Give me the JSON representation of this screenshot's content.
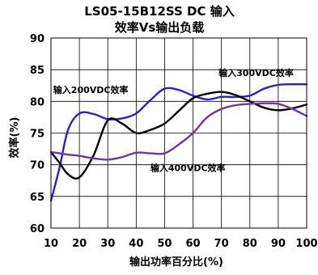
{
  "chart_data": {
    "type": "line",
    "title": "LS05-15B12SS DC 输入",
    "subtitle": "效率Vs输出负载",
    "xlabel": "输出功率百分比(%)",
    "ylabel": "效率(%)",
    "xlim": [
      10,
      100
    ],
    "ylim": [
      60,
      90
    ],
    "x_ticks": [
      "10",
      "20",
      "30",
      "40",
      "50",
      "60",
      "70",
      "80",
      "90",
      "100"
    ],
    "y_ticks": [
      "60",
      "65",
      "70",
      "75",
      "80",
      "85",
      "90"
    ],
    "grid": true,
    "legend": "none",
    "series": [
      {
        "name": "输入200VDC效率",
        "color": "#2b1fd6",
        "x": [
          10,
          13,
          16,
          20,
          25,
          30,
          35,
          40,
          45,
          50,
          55,
          60,
          65,
          70,
          75,
          80,
          85,
          90,
          95,
          100
        ],
        "values": [
          64.3,
          69.5,
          75.5,
          78.1,
          78.0,
          77.2,
          77.3,
          78.1,
          80.2,
          82.0,
          81.8,
          80.9,
          80.3,
          80.7,
          80.7,
          80.9,
          82.0,
          82.6,
          82.7,
          82.7
        ]
      },
      {
        "name": "",
        "color": "#000000",
        "x": [
          10,
          13,
          16,
          20,
          25,
          30,
          35,
          40,
          45,
          50,
          55,
          60,
          65,
          70,
          75,
          80,
          85,
          90,
          95,
          100
        ],
        "values": [
          72.0,
          70.3,
          68.5,
          68.0,
          71.5,
          77.0,
          76.5,
          75.0,
          75.5,
          76.5,
          78.5,
          80.5,
          81.2,
          81.5,
          81.0,
          80.0,
          79.0,
          78.6,
          78.9,
          79.5
        ]
      },
      {
        "name": "输入400VDC效率",
        "color": "#6a3aa2",
        "x": [
          10,
          13,
          16,
          20,
          25,
          30,
          35,
          40,
          45,
          50,
          55,
          60,
          65,
          70,
          75,
          80,
          85,
          90,
          95,
          100
        ],
        "values": [
          72.0,
          71.8,
          71.6,
          71.4,
          71.0,
          70.8,
          71.2,
          71.9,
          71.8,
          71.8,
          73.2,
          75.0,
          77.5,
          78.8,
          79.4,
          79.6,
          79.7,
          79.6,
          78.8,
          77.7
        ]
      }
    ],
    "annotations": [
      {
        "text": "输入200VDC效率",
        "x": 10.8,
        "y": 81.8
      },
      {
        "text": "输入300VDC效率",
        "x": 69.0,
        "y": 84.5
      },
      {
        "text": "输入400VDC效率",
        "x": 45.0,
        "y": 69.5
      }
    ]
  }
}
